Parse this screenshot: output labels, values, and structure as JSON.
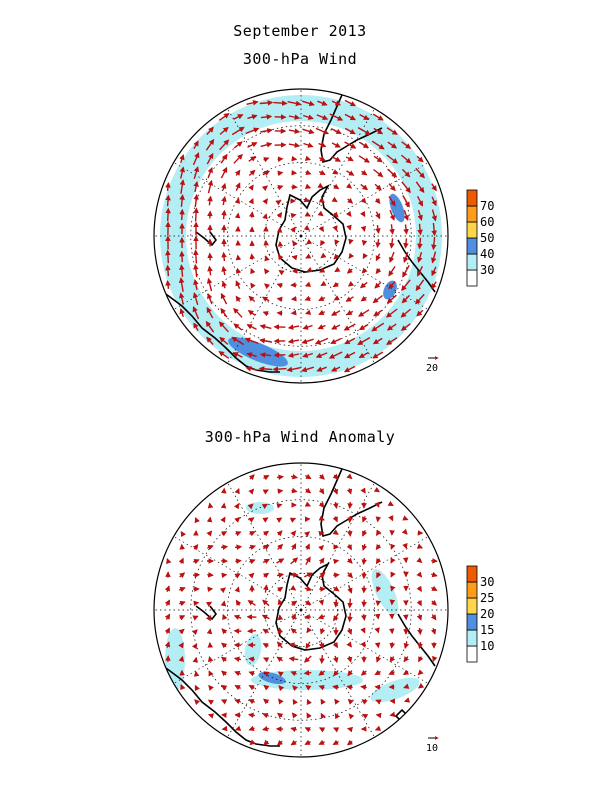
{
  "title": "September 2013",
  "panels": [
    {
      "title": "300-hPa Wind",
      "colorbar": {
        "levels": [
          "30",
          "40",
          "50",
          "60",
          "70"
        ],
        "colors": [
          "#ffffff",
          "#b3eef5",
          "#4f8fe0",
          "#ffd54a",
          "#ff9d1a",
          "#ee5a00"
        ]
      },
      "reference_vector": "20"
    },
    {
      "title": "300-hPa Wind Anomaly",
      "colorbar": {
        "levels": [
          "10",
          "15",
          "20",
          "25",
          "30"
        ],
        "colors": [
          "#ffffff",
          "#b3eef5",
          "#4f8fe0",
          "#ffd54a",
          "#ff9d1a",
          "#ee5a00"
        ]
      },
      "reference_vector": "10"
    }
  ],
  "colors": {
    "vector": "#bb1111",
    "coastline": "#000000",
    "grid": "#000000"
  }
}
